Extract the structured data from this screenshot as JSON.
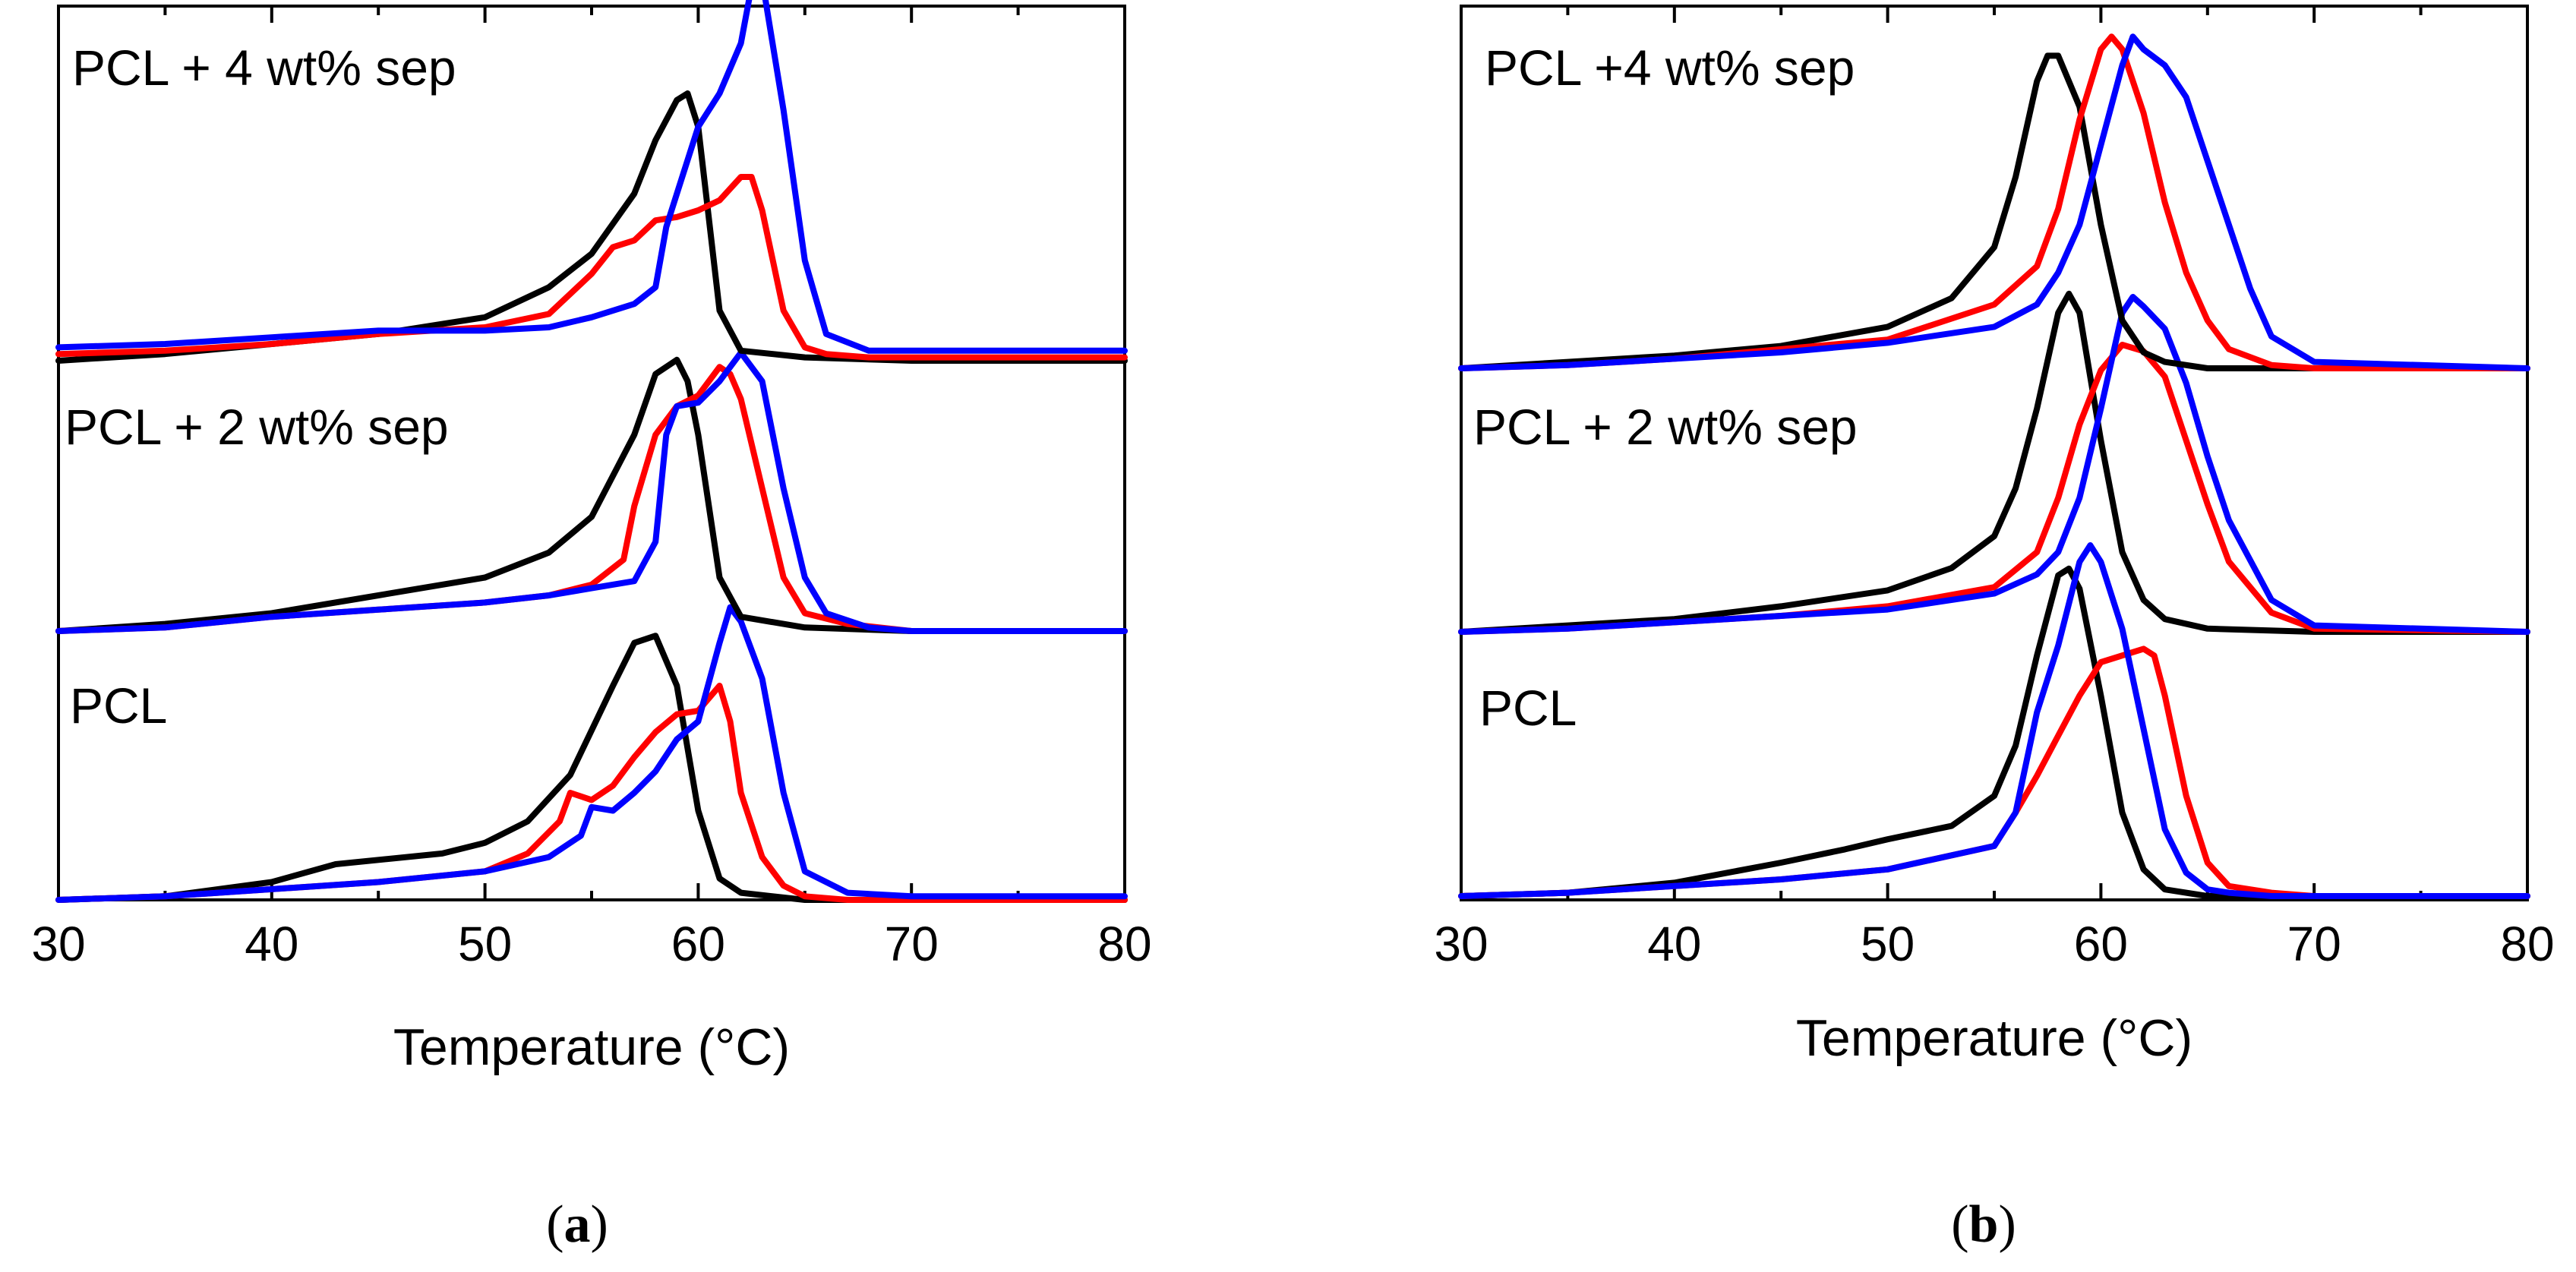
{
  "chart_data": [
    {
      "type": "line",
      "panel_label": "a",
      "xlabel": "Temperature (°C)",
      "ylabel": "",
      "xlim": [
        30,
        80
      ],
      "xticks": [
        "30",
        "40",
        "50",
        "60",
        "70",
        "80"
      ],
      "colors": {
        "black": "#000000",
        "red": "#ff0000",
        "blue": "#0000ff"
      },
      "traces": [
        {
          "label": "PCL",
          "series": [
            {
              "color": "black",
              "x": [
                30,
                35,
                40,
                43,
                48,
                50,
                52,
                54,
                56,
                57,
                58,
                59,
                60,
                61,
                62,
                65,
                70,
                80
              ],
              "y": [
                0,
                0.01,
                0.05,
                0.1,
                0.13,
                0.16,
                0.22,
                0.35,
                0.6,
                0.72,
                0.74,
                0.6,
                0.25,
                0.06,
                0.02,
                0,
                0,
                0
              ]
            },
            {
              "color": "red",
              "x": [
                30,
                35,
                40,
                45,
                50,
                52,
                53.5,
                54,
                55,
                56,
                57,
                58,
                59,
                60,
                61,
                61.5,
                62,
                63,
                64,
                65,
                67,
                70,
                80
              ],
              "y": [
                0,
                0.01,
                0.03,
                0.05,
                0.08,
                0.13,
                0.22,
                0.3,
                0.28,
                0.32,
                0.4,
                0.47,
                0.52,
                0.53,
                0.6,
                0.5,
                0.3,
                0.12,
                0.04,
                0.01,
                0,
                0,
                0
              ]
            },
            {
              "color": "blue",
              "x": [
                30,
                35,
                40,
                45,
                50,
                53,
                54.5,
                55,
                56,
                57,
                58,
                59,
                60,
                61,
                61.5,
                62,
                63,
                64,
                65,
                67,
                70,
                80
              ],
              "y": [
                0,
                0.01,
                0.03,
                0.05,
                0.08,
                0.12,
                0.18,
                0.26,
                0.25,
                0.3,
                0.36,
                0.45,
                0.5,
                0.72,
                0.82,
                0.78,
                0.62,
                0.3,
                0.08,
                0.02,
                0.01,
                0.01
              ]
            }
          ]
        },
        {
          "label": "PCL + 2 wt% sep",
          "series": [
            {
              "color": "black",
              "x": [
                30,
                35,
                40,
                45,
                50,
                53,
                55,
                57,
                58,
                59,
                59.5,
                60,
                61,
                62,
                65,
                70,
                80
              ],
              "y": [
                0,
                0.02,
                0.05,
                0.1,
                0.15,
                0.22,
                0.32,
                0.55,
                0.72,
                0.76,
                0.7,
                0.55,
                0.15,
                0.04,
                0.01,
                0,
                0
              ]
            },
            {
              "color": "red",
              "x": [
                30,
                35,
                40,
                45,
                50,
                53,
                55,
                56.5,
                57,
                58,
                59,
                60,
                61,
                61.5,
                62,
                63,
                64,
                65,
                67,
                70,
                80
              ],
              "y": [
                0,
                0.01,
                0.04,
                0.06,
                0.08,
                0.1,
                0.13,
                0.2,
                0.35,
                0.55,
                0.63,
                0.66,
                0.74,
                0.72,
                0.65,
                0.4,
                0.15,
                0.05,
                0.02,
                0,
                0
              ]
            },
            {
              "color": "blue",
              "x": [
                30,
                35,
                40,
                45,
                50,
                53,
                55,
                57,
                58,
                58.5,
                59,
                60,
                61,
                62,
                63,
                64,
                65,
                66,
                68,
                70,
                80
              ],
              "y": [
                0,
                0.01,
                0.04,
                0.06,
                0.08,
                0.1,
                0.12,
                0.14,
                0.25,
                0.55,
                0.63,
                0.64,
                0.7,
                0.78,
                0.7,
                0.4,
                0.15,
                0.05,
                0.01,
                0,
                0
              ]
            }
          ]
        },
        {
          "label": "PCL + 4 wt% sep",
          "series": [
            {
              "color": "black",
              "x": [
                30,
                35,
                40,
                45,
                50,
                53,
                55,
                57,
                58,
                59,
                59.5,
                60,
                61,
                62,
                65,
                70,
                80
              ],
              "y": [
                0,
                0.02,
                0.05,
                0.08,
                0.13,
                0.22,
                0.32,
                0.5,
                0.66,
                0.78,
                0.8,
                0.7,
                0.15,
                0.03,
                0.01,
                0,
                0
              ]
            },
            {
              "color": "red",
              "x": [
                30,
                35,
                40,
                45,
                50,
                53,
                55,
                56,
                57,
                58,
                59,
                60,
                61,
                62,
                62.5,
                63,
                64,
                65,
                66,
                68,
                70,
                80
              ],
              "y": [
                0.02,
                0.03,
                0.05,
                0.08,
                0.1,
                0.14,
                0.26,
                0.34,
                0.36,
                0.42,
                0.43,
                0.45,
                0.48,
                0.55,
                0.55,
                0.45,
                0.15,
                0.04,
                0.02,
                0.01,
                0.01,
                0.01
              ]
            },
            {
              "color": "blue",
              "x": [
                30,
                35,
                40,
                45,
                50,
                53,
                55,
                57,
                58,
                58.5,
                59,
                60,
                61,
                62,
                62.5,
                63,
                64,
                65,
                66,
                68,
                70,
                80
              ],
              "y": [
                0.04,
                0.05,
                0.07,
                0.09,
                0.09,
                0.1,
                0.13,
                0.17,
                0.22,
                0.4,
                0.5,
                0.7,
                0.8,
                0.95,
                1.12,
                1.14,
                0.75,
                0.3,
                0.08,
                0.03,
                0.03,
                0.03
              ]
            }
          ]
        }
      ]
    },
    {
      "type": "line",
      "panel_label": "b",
      "xlabel": "Temperature (°C)",
      "ylabel": "",
      "xlim": [
        30,
        80
      ],
      "xticks": [
        "30",
        "40",
        "50",
        "60",
        "70",
        "80"
      ],
      "colors": {
        "black": "#000000",
        "red": "#ff0000",
        "blue": "#0000ff"
      },
      "traces": [
        {
          "label": "PCL",
          "series": [
            {
              "color": "black",
              "x": [
                30,
                35,
                40,
                45,
                48,
                50,
                53,
                55,
                56,
                57,
                58,
                58.5,
                59,
                60,
                61,
                62,
                63,
                65,
                70,
                80
              ],
              "y": [
                0,
                0.01,
                0.04,
                0.1,
                0.14,
                0.17,
                0.21,
                0.3,
                0.45,
                0.72,
                0.96,
                0.98,
                0.92,
                0.6,
                0.25,
                0.08,
                0.02,
                0,
                0,
                0
              ]
            },
            {
              "color": "red",
              "x": [
                30,
                35,
                40,
                45,
                50,
                55,
                56,
                57,
                58,
                59,
                60,
                61,
                62,
                62.5,
                63,
                64,
                65,
                66,
                68,
                70,
                80
              ],
              "y": [
                0,
                0.01,
                0.03,
                0.05,
                0.08,
                0.15,
                0.25,
                0.36,
                0.48,
                0.6,
                0.7,
                0.72,
                0.74,
                0.72,
                0.6,
                0.3,
                0.1,
                0.03,
                0.01,
                0,
                0
              ]
            },
            {
              "color": "blue",
              "x": [
                30,
                35,
                40,
                45,
                50,
                55,
                56,
                57,
                58,
                59,
                59.5,
                60,
                61,
                62,
                63,
                64,
                65,
                66,
                68,
                70,
                80
              ],
              "y": [
                0,
                0.01,
                0.03,
                0.05,
                0.08,
                0.15,
                0.25,
                0.55,
                0.75,
                1.0,
                1.05,
                1.0,
                0.8,
                0.5,
                0.2,
                0.07,
                0.02,
                0.01,
                0,
                0,
                0
              ]
            }
          ]
        },
        {
          "label": "PCL + 2 wt% sep",
          "series": [
            {
              "color": "black",
              "x": [
                30,
                35,
                40,
                45,
                50,
                53,
                55,
                56,
                57,
                58,
                58.5,
                59,
                60,
                61,
                62,
                63,
                65,
                70,
                80
              ],
              "y": [
                0,
                0.02,
                0.04,
                0.08,
                0.13,
                0.2,
                0.3,
                0.45,
                0.7,
                1.0,
                1.06,
                1.0,
                0.6,
                0.25,
                0.1,
                0.04,
                0.01,
                0,
                0
              ]
            },
            {
              "color": "red",
              "x": [
                30,
                35,
                40,
                45,
                50,
                55,
                57,
                58,
                59,
                60,
                61,
                62,
                63,
                64,
                65,
                66,
                68,
                70,
                80
              ],
              "y": [
                0,
                0.01,
                0.03,
                0.05,
                0.08,
                0.14,
                0.25,
                0.42,
                0.65,
                0.82,
                0.9,
                0.88,
                0.8,
                0.6,
                0.4,
                0.22,
                0.06,
                0.01,
                0
              ]
            },
            {
              "color": "blue",
              "x": [
                30,
                35,
                40,
                45,
                50,
                55,
                57,
                58,
                59,
                60,
                61,
                61.5,
                62,
                63,
                64,
                65,
                66,
                68,
                70,
                80
              ],
              "y": [
                0,
                0.01,
                0.03,
                0.05,
                0.07,
                0.12,
                0.18,
                0.25,
                0.42,
                0.7,
                1.0,
                1.05,
                1.02,
                0.95,
                0.78,
                0.55,
                0.35,
                0.1,
                0.02,
                0
              ]
            }
          ]
        },
        {
          "label": "PCL +4 wt% sep",
          "series": [
            {
              "color": "black",
              "x": [
                30,
                35,
                40,
                45,
                50,
                53,
                55,
                56,
                57,
                57.5,
                58,
                59,
                60,
                61,
                62,
                63,
                65,
                70,
                80
              ],
              "y": [
                0,
                0.02,
                0.04,
                0.07,
                0.13,
                0.22,
                0.38,
                0.6,
                0.9,
                0.98,
                0.98,
                0.82,
                0.45,
                0.15,
                0.05,
                0.02,
                0,
                0,
                0
              ]
            },
            {
              "color": "red",
              "x": [
                30,
                35,
                40,
                45,
                50,
                55,
                57,
                58,
                59,
                60,
                60.5,
                61,
                62,
                63,
                64,
                65,
                66,
                68,
                70,
                80
              ],
              "y": [
                0,
                0.01,
                0.03,
                0.06,
                0.09,
                0.2,
                0.32,
                0.5,
                0.78,
                1.0,
                1.04,
                1.0,
                0.8,
                0.52,
                0.3,
                0.15,
                0.06,
                0.01,
                0,
                0
              ]
            },
            {
              "color": "blue",
              "x": [
                30,
                35,
                40,
                45,
                50,
                55,
                57,
                58,
                59,
                60,
                61,
                61.5,
                62,
                63,
                64,
                65,
                66,
                67,
                68,
                70,
                80
              ],
              "y": [
                0,
                0.01,
                0.03,
                0.05,
                0.08,
                0.13,
                0.2,
                0.3,
                0.45,
                0.7,
                0.95,
                1.04,
                1.0,
                0.95,
                0.85,
                0.65,
                0.45,
                0.25,
                0.1,
                0.02,
                0
              ]
            }
          ]
        }
      ]
    }
  ]
}
